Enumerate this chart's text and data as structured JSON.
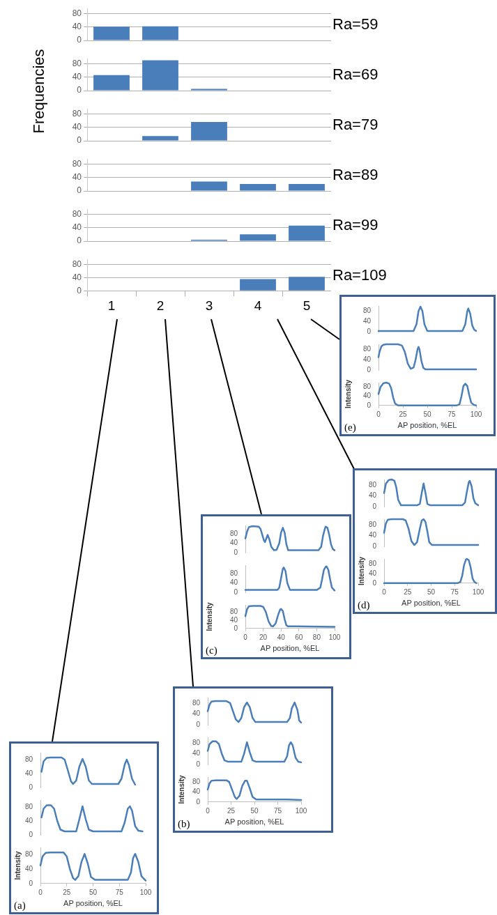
{
  "chart_data": [
    {
      "type": "bar",
      "title": "Ra=59",
      "categories": [
        "1",
        "2",
        "3",
        "4",
        "5"
      ],
      "values": [
        41,
        42,
        0,
        0,
        0
      ],
      "color": "#4a7ebb",
      "ylim": [
        0,
        95
      ],
      "yticks": [
        0,
        40,
        80
      ],
      "grid": "y",
      "tick_labels": "y"
    },
    {
      "type": "bar",
      "title": "Ra=69",
      "ylabel": "Frequencies",
      "categories": [
        "1",
        "2",
        "3",
        "4",
        "5"
      ],
      "values": [
        46,
        90,
        5,
        0,
        0
      ],
      "color": "#4a7ebb",
      "ylim": [
        0,
        95
      ],
      "yticks": [
        0,
        40,
        80
      ],
      "grid": "y",
      "tick_labels": "y"
    },
    {
      "type": "bar",
      "title": "Ra=79",
      "categories": [
        "1",
        "2",
        "3",
        "4",
        "5"
      ],
      "values": [
        0,
        14,
        56,
        0,
        0
      ],
      "color": "#4a7ebb",
      "ylim": [
        0,
        95
      ],
      "yticks": [
        0,
        40,
        80
      ],
      "grid": "y",
      "tick_labels": "y"
    },
    {
      "type": "bar",
      "title": "Ra=89",
      "categories": [
        "1",
        "2",
        "3",
        "4",
        "5"
      ],
      "values": [
        0,
        0,
        28,
        21,
        21
      ],
      "color": "#4a7ebb",
      "ylim": [
        0,
        95
      ],
      "yticks": [
        0,
        40,
        80
      ],
      "grid": "y",
      "tick_labels": "y"
    },
    {
      "type": "bar",
      "title": "Ra=99",
      "categories": [
        "1",
        "2",
        "3",
        "4",
        "5"
      ],
      "values": [
        0,
        0,
        4,
        20,
        46
      ],
      "color": "#4a7ebb",
      "ylim": [
        0,
        95
      ],
      "yticks": [
        0,
        40,
        80
      ],
      "grid": "y",
      "tick_labels": "y"
    },
    {
      "type": "bar",
      "title": "Ra=109",
      "categories": [
        "1",
        "2",
        "3",
        "4",
        "5"
      ],
      "values": [
        0,
        0,
        0,
        35,
        42
      ],
      "color": "#4a7ebb",
      "ylim": [
        0,
        95
      ],
      "yticks": [
        0,
        40,
        80
      ],
      "grid": "y"
    },
    {
      "type": "line",
      "x": [
        0,
        30,
        36,
        39,
        41,
        43,
        45,
        47,
        50,
        80,
        86,
        89,
        91,
        92,
        94,
        96,
        98,
        100
      ],
      "values": [
        3,
        3,
        3,
        30,
        80,
        97,
        80,
        30,
        3,
        3,
        3,
        30,
        80,
        90,
        70,
        25,
        8,
        3
      ],
      "color": "#4a7ebb",
      "xlim": [
        0,
        100
      ],
      "ylim": [
        0,
        100
      ],
      "yticks": [
        0,
        40,
        80
      ],
      "tick_labels": "y"
    },
    {
      "type": "line",
      "x": [
        0,
        1,
        3,
        5,
        8,
        20,
        24,
        27,
        30,
        33,
        36,
        38,
        40,
        41,
        42,
        44,
        46,
        48,
        55,
        100
      ],
      "values": [
        50,
        70,
        92,
        98,
        100,
        100,
        95,
        70,
        25,
        5,
        10,
        40,
        80,
        90,
        80,
        35,
        8,
        3,
        3,
        3
      ],
      "color": "#4a7ebb",
      "xlim": [
        0,
        100
      ],
      "ylim": [
        0,
        100
      ],
      "yticks": [
        0,
        40,
        80
      ],
      "tick_labels": "y"
    },
    {
      "type": "line",
      "ylabel": "Intensity",
      "xlabel": "AP position, %EL",
      "annotations": [
        "(e)"
      ],
      "x": [
        0,
        2,
        5,
        8,
        11,
        13,
        15,
        17,
        20,
        80,
        83,
        85,
        87,
        89,
        91,
        93,
        95,
        98,
        100
      ],
      "values": [
        50,
        80,
        97,
        100,
        95,
        75,
        35,
        8,
        0,
        0,
        5,
        40,
        85,
        95,
        85,
        45,
        12,
        2,
        0
      ],
      "color": "#4a7ebb",
      "xlim": [
        0,
        100
      ],
      "xticks": [
        0,
        25,
        50,
        75,
        100
      ],
      "ylim": [
        0,
        100
      ],
      "yticks": [
        0,
        40,
        80
      ]
    },
    {
      "type": "line",
      "x": [
        0,
        2,
        5,
        8,
        11,
        13,
        15,
        18,
        35,
        38,
        40,
        42,
        44,
        46,
        49,
        83,
        86,
        88,
        90,
        91,
        93,
        95,
        97,
        100
      ],
      "values": [
        50,
        85,
        98,
        100,
        95,
        70,
        25,
        5,
        5,
        10,
        50,
        85,
        50,
        10,
        5,
        5,
        15,
        55,
        90,
        95,
        75,
        30,
        12,
        5
      ],
      "color": "#4a7ebb",
      "xlim": [
        0,
        100
      ],
      "ylim": [
        0,
        100
      ],
      "yticks": [
        0,
        40,
        80
      ],
      "tick_labels": "y"
    },
    {
      "type": "line",
      "x": [
        0,
        2,
        4,
        8,
        20,
        23,
        26,
        29,
        32,
        35,
        38,
        40,
        42,
        44,
        46,
        48,
        51,
        60,
        100
      ],
      "values": [
        50,
        85,
        98,
        100,
        100,
        95,
        65,
        20,
        5,
        15,
        65,
        95,
        100,
        90,
        55,
        15,
        5,
        5,
        5
      ],
      "color": "#4a7ebb",
      "xlim": [
        0,
        100
      ],
      "ylim": [
        0,
        100
      ],
      "yticks": [
        0,
        40,
        80
      ],
      "tick_labels": "y"
    },
    {
      "type": "line",
      "ylabel": "Intensity",
      "xlabel": "AP position, %EL",
      "annotations": [
        "(d)"
      ],
      "x": [
        0,
        78,
        81,
        83,
        85,
        87,
        88,
        90,
        92,
        94,
        96,
        98
      ],
      "values": [
        0,
        0,
        5,
        30,
        75,
        97,
        100,
        95,
        65,
        20,
        5,
        0
      ],
      "color": "#4a7ebb",
      "xlim": [
        0,
        100
      ],
      "xticks": [
        0,
        25,
        50,
        75,
        100
      ],
      "ylim": [
        0,
        100
      ],
      "yticks": [
        0,
        40,
        80
      ]
    },
    {
      "type": "line",
      "x": [
        0,
        2,
        4,
        8,
        15,
        17,
        19,
        21,
        22,
        24,
        25,
        27,
        29,
        32,
        35,
        38,
        40,
        42,
        44,
        46,
        48,
        55,
        82,
        85,
        87,
        89,
        90,
        92,
        94,
        96,
        98,
        100
      ],
      "values": [
        60,
        90,
        108,
        112,
        110,
        100,
        75,
        50,
        45,
        65,
        75,
        55,
        25,
        10,
        12,
        40,
        85,
        105,
        85,
        35,
        10,
        10,
        10,
        25,
        70,
        100,
        110,
        105,
        75,
        35,
        15,
        10
      ],
      "color": "#4a7ebb",
      "xlim": [
        0,
        100
      ],
      "ylim": [
        0,
        115
      ],
      "yticks": [
        0,
        40,
        80
      ],
      "tick_labels": "y"
    },
    {
      "type": "line",
      "x": [
        0,
        36,
        38,
        40,
        42,
        43,
        45,
        47,
        50,
        80,
        84,
        86,
        88,
        90,
        91,
        93,
        95,
        97,
        100
      ],
      "values": [
        10,
        10,
        20,
        60,
        100,
        105,
        90,
        40,
        10,
        10,
        20,
        55,
        95,
        108,
        110,
        95,
        55,
        20,
        8
      ],
      "color": "#4a7ebb",
      "xlim": [
        0,
        100
      ],
      "ylim": [
        0,
        115
      ],
      "yticks": [
        0,
        40,
        80
      ],
      "tick_labels": "y"
    },
    {
      "type": "line",
      "ylabel": "Intensity",
      "xlabel": "AP position, %EL",
      "annotations": [
        "(c)"
      ],
      "x": [
        0,
        2,
        4,
        8,
        17,
        20,
        23,
        26,
        29,
        31,
        34,
        37,
        39,
        40,
        42,
        44,
        46,
        48,
        55,
        100
      ],
      "values": [
        60,
        95,
        108,
        110,
        110,
        105,
        80,
        35,
        12,
        10,
        25,
        70,
        92,
        95,
        85,
        45,
        15,
        10,
        10,
        8
      ],
      "color": "#4a7ebb",
      "xlim": [
        0,
        100
      ],
      "xticks": [
        0,
        20,
        40,
        60,
        80,
        100
      ],
      "ylim": [
        0,
        115
      ],
      "yticks": [
        0,
        40,
        80
      ]
    },
    {
      "type": "line",
      "x": [
        0,
        2,
        4,
        8,
        20,
        24,
        27,
        30,
        33,
        36,
        39,
        42,
        45,
        48,
        51,
        85,
        88,
        90,
        93,
        96,
        98,
        100
      ],
      "values": [
        50,
        75,
        85,
        87,
        87,
        80,
        50,
        20,
        10,
        25,
        65,
        82,
        65,
        25,
        10,
        10,
        25,
        60,
        82,
        55,
        15,
        8
      ],
      "color": "#4a7ebb",
      "xlim": [
        0,
        100
      ],
      "ylim": [
        0,
        100
      ],
      "yticks": [
        0,
        40,
        80
      ],
      "tick_labels": "y"
    },
    {
      "type": "line",
      "x": [
        0,
        2,
        5,
        9,
        12,
        15,
        18,
        22,
        36,
        39,
        42,
        45,
        48,
        52,
        82,
        85,
        87,
        89,
        91,
        94,
        97,
        100
      ],
      "values": [
        50,
        75,
        85,
        85,
        75,
        40,
        15,
        10,
        10,
        40,
        82,
        45,
        15,
        10,
        10,
        30,
        70,
        82,
        70,
        25,
        10,
        8
      ],
      "color": "#4a7ebb",
      "xlim": [
        0,
        100
      ],
      "ylim": [
        0,
        100
      ],
      "yticks": [
        0,
        40,
        80
      ],
      "tick_labels": "y"
    },
    {
      "type": "line",
      "ylabel": "Intensity",
      "xlabel": "AP position, %EL",
      "annotations": [
        "(b)"
      ],
      "x": [
        0,
        2,
        4,
        8,
        20,
        23,
        26,
        29,
        31,
        34,
        37,
        40,
        42,
        45,
        48,
        52,
        60,
        85,
        100
      ],
      "values": [
        50,
        75,
        85,
        87,
        87,
        80,
        50,
        20,
        12,
        25,
        65,
        85,
        85,
        55,
        20,
        10,
        10,
        10,
        8
      ],
      "color": "#4a7ebb",
      "xlim": [
        0,
        100
      ],
      "xticks": [
        0,
        25,
        50,
        75,
        100
      ],
      "ylim": [
        0,
        100
      ],
      "yticks": [
        0,
        40,
        80
      ]
    },
    {
      "type": "line",
      "x": [
        1,
        3,
        6,
        10,
        20,
        23,
        26,
        29,
        31,
        34,
        37,
        40,
        43,
        46,
        49,
        74,
        77,
        80,
        82,
        84,
        87,
        90
      ],
      "values": [
        45,
        75,
        85,
        86,
        86,
        80,
        50,
        18,
        10,
        20,
        60,
        82,
        60,
        20,
        10,
        10,
        25,
        65,
        80,
        65,
        25,
        8
      ],
      "color": "#4a7ebb",
      "xlim": [
        0,
        100
      ],
      "ylim": [
        0,
        100
      ],
      "yticks": [
        0,
        40,
        80
      ],
      "tick_labels": "y"
    },
    {
      "type": "line",
      "x": [
        1,
        3,
        6,
        10,
        13,
        16,
        19,
        23,
        34,
        37,
        40,
        43,
        46,
        50,
        77,
        80,
        83,
        85,
        87,
        90,
        93,
        97
      ],
      "values": [
        50,
        75,
        85,
        85,
        75,
        40,
        15,
        10,
        10,
        45,
        82,
        45,
        15,
        10,
        10,
        35,
        75,
        82,
        70,
        25,
        12,
        10
      ],
      "color": "#4a7ebb",
      "xlim": [
        0,
        100
      ],
      "ylim": [
        0,
        100
      ],
      "yticks": [
        0,
        40,
        80
      ],
      "tick_labels": "y"
    },
    {
      "type": "line",
      "ylabel": "Intensity",
      "xlabel": "AP position, %EL",
      "annotations": [
        "(a)"
      ],
      "x": [
        0,
        2,
        5,
        10,
        22,
        25,
        28,
        31,
        33,
        36,
        39,
        42,
        45,
        48,
        52,
        83,
        86,
        88,
        90,
        93,
        96,
        100
      ],
      "values": [
        50,
        75,
        85,
        86,
        86,
        75,
        40,
        15,
        10,
        20,
        60,
        82,
        55,
        18,
        10,
        10,
        30,
        70,
        82,
        60,
        20,
        8
      ],
      "color": "#4a7ebb",
      "xlim": [
        0,
        100
      ],
      "xticks": [
        0,
        25,
        50,
        75,
        100
      ],
      "ylim": [
        0,
        100
      ],
      "yticks": [
        0,
        40,
        80
      ]
    }
  ]
}
